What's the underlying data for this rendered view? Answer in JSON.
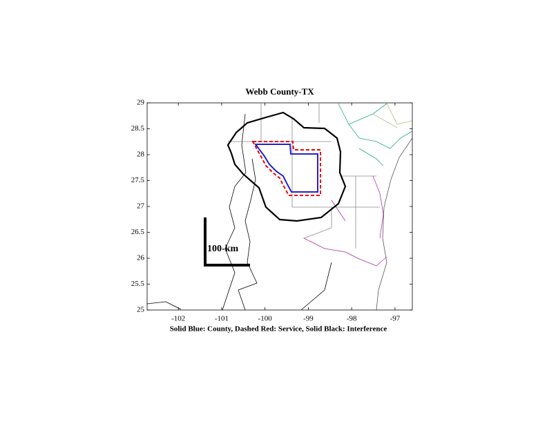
{
  "chart_data": {
    "type": "map",
    "title": "Webb County-TX",
    "xlabel": "Solid Blue: County, Dashed Red: Service, Solid Black: Interference",
    "scale_label": "100-km",
    "xlim": [
      -102.72,
      -96.6
    ],
    "ylim": [
      25,
      29
    ],
    "xticks": [
      -102,
      -101,
      -100,
      -99,
      -98,
      -97
    ],
    "yticks": [
      25,
      25.5,
      26,
      26.5,
      27,
      27.5,
      28,
      28.5,
      29
    ]
  }
}
